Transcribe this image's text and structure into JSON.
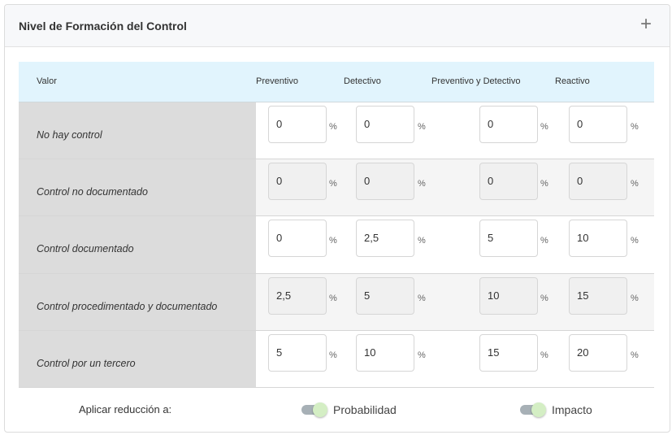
{
  "panel": {
    "title": "Nivel de Formación del Control",
    "expand_icon": "plus-icon"
  },
  "table": {
    "headers": [
      "Valor",
      "Preventivo",
      "Detectivo",
      "Preventivo y Detectivo",
      "Reactivo"
    ],
    "unit": "%",
    "rows": [
      {
        "label": "No hay control",
        "values": [
          "0",
          "0",
          "0",
          "0"
        ],
        "editable": true
      },
      {
        "label": "Control no documentado",
        "values": [
          "0",
          "0",
          "0",
          "0"
        ],
        "editable": false
      },
      {
        "label": "Control documentado",
        "values": [
          "0",
          "2,5",
          "5",
          "10"
        ],
        "editable": true
      },
      {
        "label": "Control procedimentado y documentado",
        "values": [
          "2,5",
          "5",
          "10",
          "15"
        ],
        "editable": false
      },
      {
        "label": "Control por un tercero",
        "values": [
          "5",
          "10",
          "15",
          "20"
        ],
        "editable": true
      }
    ]
  },
  "footer": {
    "label": "Aplicar reducción a:",
    "toggles": [
      {
        "label": "Probabilidad",
        "on": true
      },
      {
        "label": "Impacto",
        "on": true
      }
    ]
  },
  "colors": {
    "header_bg": "#e1f4fd",
    "label_col_bg": "#dcdcdc",
    "toggle_knob": "#d4eec4",
    "toggle_track": "#a7b0b6"
  }
}
